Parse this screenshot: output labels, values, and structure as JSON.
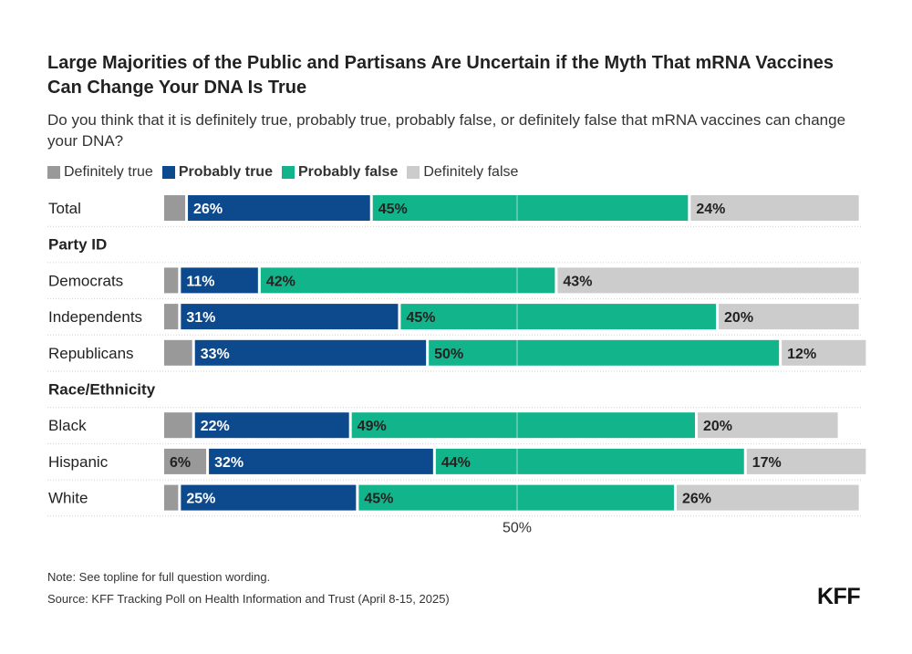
{
  "title": "Large Majorities of the Public and Partisans Are Uncertain if the Myth That mRNA Vaccines Can Change Your DNA Is True",
  "subtitle": "Do you think that it is definitely true, probably true, probably false, or definitely false that mRNA vaccines can change your DNA?",
  "legend": [
    {
      "label": "Definitely true",
      "color": "#999999",
      "bold": false
    },
    {
      "label": "Probably true",
      "color": "#0c4a8d",
      "bold": true
    },
    {
      "label": "Probably false",
      "color": "#12b58b",
      "bold": true
    },
    {
      "label": "Definitely false",
      "color": "#cccccc",
      "bold": false
    }
  ],
  "note": "Note: See topline for full question wording.",
  "source": "Source: KFF Tracking Poll on Health Information and Trust (April 8-15, 2025)",
  "logo": "KFF",
  "chart_data": {
    "type": "bar",
    "orientation": "horizontal",
    "stacked": true,
    "title": "Large Majorities of the Public and Partisans Are Uncertain if the Myth That mRNA Vaccines Can Change Your DNA Is True",
    "xlim": [
      0,
      100
    ],
    "midline_label": "50%",
    "series_names": [
      "Definitely true",
      "Probably true",
      "Probably false",
      "Definitely false"
    ],
    "colors": [
      "#999999",
      "#0c4a8d",
      "#12b58b",
      "#cccccc"
    ],
    "label_colors": [
      "#222222",
      "#ffffff",
      "#222222",
      "#222222"
    ],
    "rows": [
      {
        "kind": "bar",
        "label": "Total",
        "values": [
          3,
          26,
          45,
          24
        ],
        "labels": [
          "",
          "26%",
          "45%",
          "24%"
        ]
      },
      {
        "kind": "group",
        "label": "Party ID"
      },
      {
        "kind": "bar",
        "label": "Democrats",
        "values": [
          2,
          11,
          42,
          43
        ],
        "labels": [
          "",
          "11%",
          "42%",
          "43%"
        ]
      },
      {
        "kind": "bar",
        "label": "Independents",
        "values": [
          2,
          31,
          45,
          20
        ],
        "labels": [
          "",
          "31%",
          "45%",
          "20%"
        ]
      },
      {
        "kind": "bar",
        "label": "Republicans",
        "values": [
          4,
          33,
          50,
          12
        ],
        "labels": [
          "",
          "33%",
          "50%",
          "12%"
        ]
      },
      {
        "kind": "group",
        "label": "Race/Ethnicity"
      },
      {
        "kind": "bar",
        "label": "Black",
        "values": [
          4,
          22,
          49,
          20
        ],
        "labels": [
          "",
          "22%",
          "49%",
          "20%"
        ]
      },
      {
        "kind": "bar",
        "label": "Hispanic",
        "values": [
          6,
          32,
          44,
          17
        ],
        "labels": [
          "6%",
          "32%",
          "44%",
          "17%"
        ]
      },
      {
        "kind": "bar",
        "label": "White",
        "values": [
          2,
          25,
          45,
          26
        ],
        "labels": [
          "",
          "25%",
          "45%",
          "26%"
        ]
      }
    ]
  }
}
